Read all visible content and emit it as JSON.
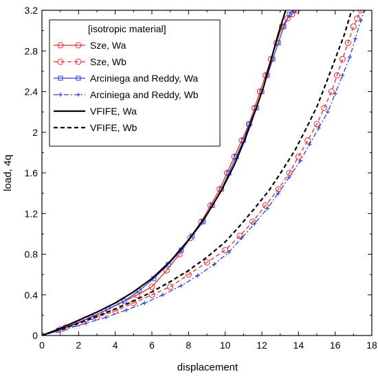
{
  "chart_data": {
    "type": "line",
    "xlabel": "displacement",
    "ylabel": "load, 4q",
    "xlim": [
      0,
      18
    ],
    "ylim": [
      0,
      3.2
    ],
    "xticks": [
      "0",
      "2",
      "4",
      "6",
      "8",
      "10",
      "12",
      "14",
      "16",
      "18"
    ],
    "yticks": [
      "0",
      "0.4",
      "0.8",
      "1.2",
      "1.6",
      "2",
      "2.4",
      "2.8",
      "3.2"
    ],
    "grid": false,
    "legend": {
      "placement": "top-left",
      "title": "[isotropic material]"
    },
    "series": [
      {
        "name": "Sze, Wa",
        "color": "#e8262a",
        "line": "solid",
        "marker": "circle",
        "x": [
          0,
          1.3,
          2.4,
          3.4,
          4.3,
          5.2,
          6.0,
          6.8,
          7.5,
          8.1,
          8.7,
          9.2,
          9.7,
          10.1,
          10.5,
          10.9,
          11.3,
          11.6,
          11.9,
          12.2,
          12.5,
          12.8,
          13.1,
          13.4,
          13.65,
          13.9
        ],
        "y": [
          0,
          0.08,
          0.16,
          0.24,
          0.32,
          0.4,
          0.48,
          0.64,
          0.8,
          0.96,
          1.12,
          1.28,
          1.44,
          1.6,
          1.76,
          1.92,
          2.08,
          2.24,
          2.4,
          2.56,
          2.72,
          2.88,
          3.04,
          3.12,
          3.16,
          3.2
        ]
      },
      {
        "name": "Sze, Wb",
        "color": "#e8262a",
        "line": "dashed",
        "marker": "circle",
        "x": [
          0,
          1.0,
          2.0,
          3.0,
          4.0,
          5.0,
          6.0,
          7.0,
          8.0,
          9.0,
          10.0,
          10.8,
          11.5,
          12.2,
          12.9,
          13.5,
          14.0,
          14.5,
          15.0,
          15.4,
          15.8,
          16.1,
          16.4,
          16.7,
          17.0,
          17.2,
          17.4
        ],
        "y": [
          0,
          0.06,
          0.12,
          0.18,
          0.24,
          0.32,
          0.4,
          0.48,
          0.6,
          0.72,
          0.84,
          0.98,
          1.12,
          1.28,
          1.44,
          1.6,
          1.76,
          1.92,
          2.08,
          2.24,
          2.4,
          2.56,
          2.72,
          2.88,
          3.04,
          3.12,
          3.2
        ]
      },
      {
        "name": "Arciniega and Reddy, Wa",
        "color": "#2a3fd6",
        "line": "solid",
        "marker": "square",
        "x": [
          0,
          0.9,
          1.8,
          2.7,
          3.6,
          4.5,
          5.3,
          6.1,
          6.9,
          7.6,
          8.2,
          8.8,
          9.3,
          9.8,
          10.2,
          10.6,
          11.0,
          11.3,
          11.7,
          12.0,
          12.3,
          12.6,
          12.9,
          13.2,
          13.5,
          13.75
        ],
        "y": [
          0,
          0.05,
          0.11,
          0.18,
          0.26,
          0.34,
          0.44,
          0.56,
          0.7,
          0.84,
          0.98,
          1.12,
          1.28,
          1.44,
          1.6,
          1.76,
          1.92,
          2.08,
          2.24,
          2.4,
          2.56,
          2.72,
          2.88,
          3.04,
          3.16,
          3.2
        ]
      },
      {
        "name": "Arciniega and Reddy, Wb",
        "color": "#2a3fd6",
        "line": "dashdot",
        "marker": "plus",
        "x": [
          0,
          1.2,
          2.4,
          3.5,
          4.6,
          5.6,
          6.6,
          7.6,
          8.5,
          9.4,
          10.2,
          10.9,
          11.6,
          12.3,
          12.9,
          13.5,
          14.1,
          14.6,
          15.1,
          15.6,
          16.0,
          16.4,
          16.8,
          17.1,
          17.4,
          17.6
        ],
        "y": [
          0,
          0.06,
          0.12,
          0.18,
          0.25,
          0.32,
          0.4,
          0.49,
          0.59,
          0.7,
          0.82,
          0.96,
          1.1,
          1.25,
          1.4,
          1.56,
          1.72,
          1.88,
          2.04,
          2.2,
          2.38,
          2.56,
          2.74,
          2.92,
          3.1,
          3.2
        ]
      },
      {
        "name": "VFIFE, Wa",
        "color": "#000000",
        "line": "solid",
        "marker": "none",
        "x": [
          0,
          1.0,
          2.0,
          3.0,
          4.0,
          5.0,
          6.0,
          7.0,
          8.0,
          9.0,
          9.8,
          10.5,
          11.1,
          11.6,
          12.1,
          12.5,
          12.9,
          13.3
        ],
        "y": [
          0,
          0.07,
          0.15,
          0.23,
          0.32,
          0.43,
          0.56,
          0.73,
          0.94,
          1.19,
          1.43,
          1.68,
          1.94,
          2.19,
          2.45,
          2.71,
          2.97,
          3.2
        ]
      },
      {
        "name": "VFIFE, Wb",
        "color": "#000000",
        "line": "dashed",
        "marker": "none",
        "x": [
          0,
          1.0,
          2.0,
          3.0,
          4.0,
          5.0,
          6.0,
          7.0,
          8.0,
          9.0,
          10.0,
          10.8,
          11.6,
          12.4,
          13.1,
          13.8,
          14.4,
          15.0,
          15.5,
          16.0,
          16.5,
          16.9
        ],
        "y": [
          0,
          0.06,
          0.12,
          0.19,
          0.26,
          0.34,
          0.43,
          0.53,
          0.64,
          0.77,
          0.92,
          1.08,
          1.25,
          1.43,
          1.62,
          1.82,
          2.03,
          2.25,
          2.48,
          2.72,
          2.96,
          3.2
        ]
      }
    ]
  }
}
